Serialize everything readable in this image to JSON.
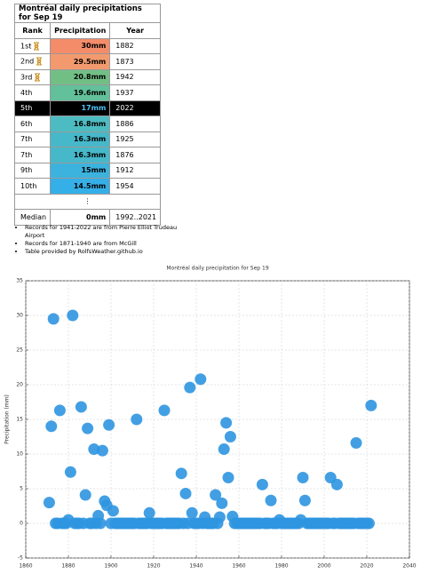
{
  "table": {
    "title": "Montréal daily precipitations for Sep 19",
    "headers": [
      "Rank",
      "Precipitation",
      "Year"
    ],
    "rows": [
      [
        "1st",
        "30mm",
        "1882"
      ],
      [
        "2nd",
        "29.5mm",
        "1873"
      ],
      [
        "3rd",
        "20.8mm",
        "1942"
      ],
      [
        "4th",
        "19.6mm",
        "1937"
      ],
      [
        "5th",
        "17mm",
        "2022"
      ],
      [
        "6th",
        "16.8mm",
        "1886"
      ],
      [
        "7th",
        "16.3mm",
        "1925"
      ],
      [
        "7th",
        "16.3mm",
        "1876"
      ],
      [
        "9th",
        "15mm",
        "1912"
      ],
      [
        "10th",
        "14.5mm",
        "1954"
      ]
    ],
    "ellipsis": "⋮",
    "median": [
      "Median",
      "0mm",
      "1992..2021"
    ]
  },
  "notes": [
    "Records for 1941-2022 are from Pierre Elliot Trudeau Airport",
    "Records for 1871-1940 are from McGill",
    "Table provided by RolfsWeather.github.io"
  ],
  "chart_data": {
    "type": "scatter",
    "title": "Montréal daily precipitation for Sep 19",
    "y_label": "Precipitation (mm)",
    "color": "#2f95e0",
    "grid": true,
    "xlim": [
      1860,
      2040
    ],
    "xticks": [
      1860,
      1880,
      1900,
      1920,
      1940,
      1960,
      1980,
      2000,
      2020,
      2040
    ],
    "ylim": [
      -5,
      35
    ],
    "yticks": [
      -5,
      0,
      5,
      10,
      15,
      20,
      25,
      30,
      35
    ],
    "x": [
      1871,
      1872,
      1873,
      1874,
      1875,
      1876,
      1877,
      1878,
      1879,
      1880,
      1881,
      1882,
      1883,
      1884,
      1885,
      1886,
      1887,
      1888,
      1889,
      1890,
      1891,
      1892,
      1893,
      1894,
      1895,
      1896,
      1897,
      1898,
      1899,
      1900,
      1901,
      1902,
      1903,
      1904,
      1905,
      1906,
      1907,
      1908,
      1909,
      1910,
      1911,
      1912,
      1913,
      1914,
      1915,
      1916,
      1917,
      1918,
      1919,
      1920,
      1921,
      1922,
      1923,
      1924,
      1925,
      1926,
      1927,
      1928,
      1929,
      1930,
      1931,
      1932,
      1933,
      1934,
      1935,
      1936,
      1937,
      1938,
      1939,
      1940,
      1941,
      1942,
      1943,
      1944,
      1945,
      1946,
      1947,
      1948,
      1949,
      1950,
      1951,
      1952,
      1953,
      1954,
      1955,
      1956,
      1957,
      1958,
      1959,
      1960,
      1961,
      1962,
      1963,
      1964,
      1965,
      1966,
      1967,
      1968,
      1969,
      1970,
      1971,
      1972,
      1973,
      1974,
      1975,
      1976,
      1977,
      1978,
      1979,
      1980,
      1981,
      1982,
      1983,
      1984,
      1985,
      1986,
      1987,
      1988,
      1989,
      1990,
      1991,
      1992,
      1993,
      1994,
      1995,
      1996,
      1997,
      1998,
      1999,
      2000,
      2001,
      2002,
      2003,
      2004,
      2005,
      2006,
      2007,
      2008,
      2009,
      2010,
      2011,
      2012,
      2013,
      2014,
      2015,
      2016,
      2017,
      2018,
      2019,
      2020,
      2021,
      2022
    ],
    "values": [
      3.0,
      14.0,
      29.5,
      0,
      0,
      16.3,
      0,
      0,
      0,
      0.5,
      7.4,
      30,
      0,
      0,
      0,
      16.8,
      0,
      4.1,
      13.7,
      0,
      0,
      10.7,
      0,
      1.1,
      0,
      10.5,
      3.2,
      2.6,
      14.2,
      0,
      1.8,
      0,
      0,
      0,
      0,
      0,
      0,
      0,
      0,
      0,
      0,
      15,
      0,
      0,
      0,
      0,
      0,
      1.5,
      0,
      0,
      0,
      0,
      0,
      0,
      16.3,
      0,
      0,
      0,
      0,
      0,
      0,
      0,
      7.2,
      0,
      4.3,
      0,
      19.6,
      1.5,
      0,
      0,
      0,
      20.8,
      0,
      0.9,
      0,
      0,
      0,
      0,
      4.1,
      0,
      0.9,
      2.9,
      10.7,
      14.5,
      6.6,
      12.5,
      1.0,
      0,
      0,
      0,
      0,
      0,
      0,
      0,
      0,
      0,
      0,
      0,
      0,
      0,
      5.6,
      0,
      0,
      0,
      3.3,
      0,
      0,
      0,
      0.5,
      0,
      0,
      0,
      0,
      0,
      0,
      0,
      0,
      0,
      0.5,
      6.6,
      3.3,
      0,
      0,
      0,
      0,
      0,
      0,
      0,
      0,
      0,
      0,
      0,
      6.6,
      0,
      0,
      5.6,
      0,
      0,
      0,
      0,
      0,
      0,
      0,
      0,
      11.6,
      0,
      0,
      0,
      0,
      0,
      0,
      17
    ]
  }
}
